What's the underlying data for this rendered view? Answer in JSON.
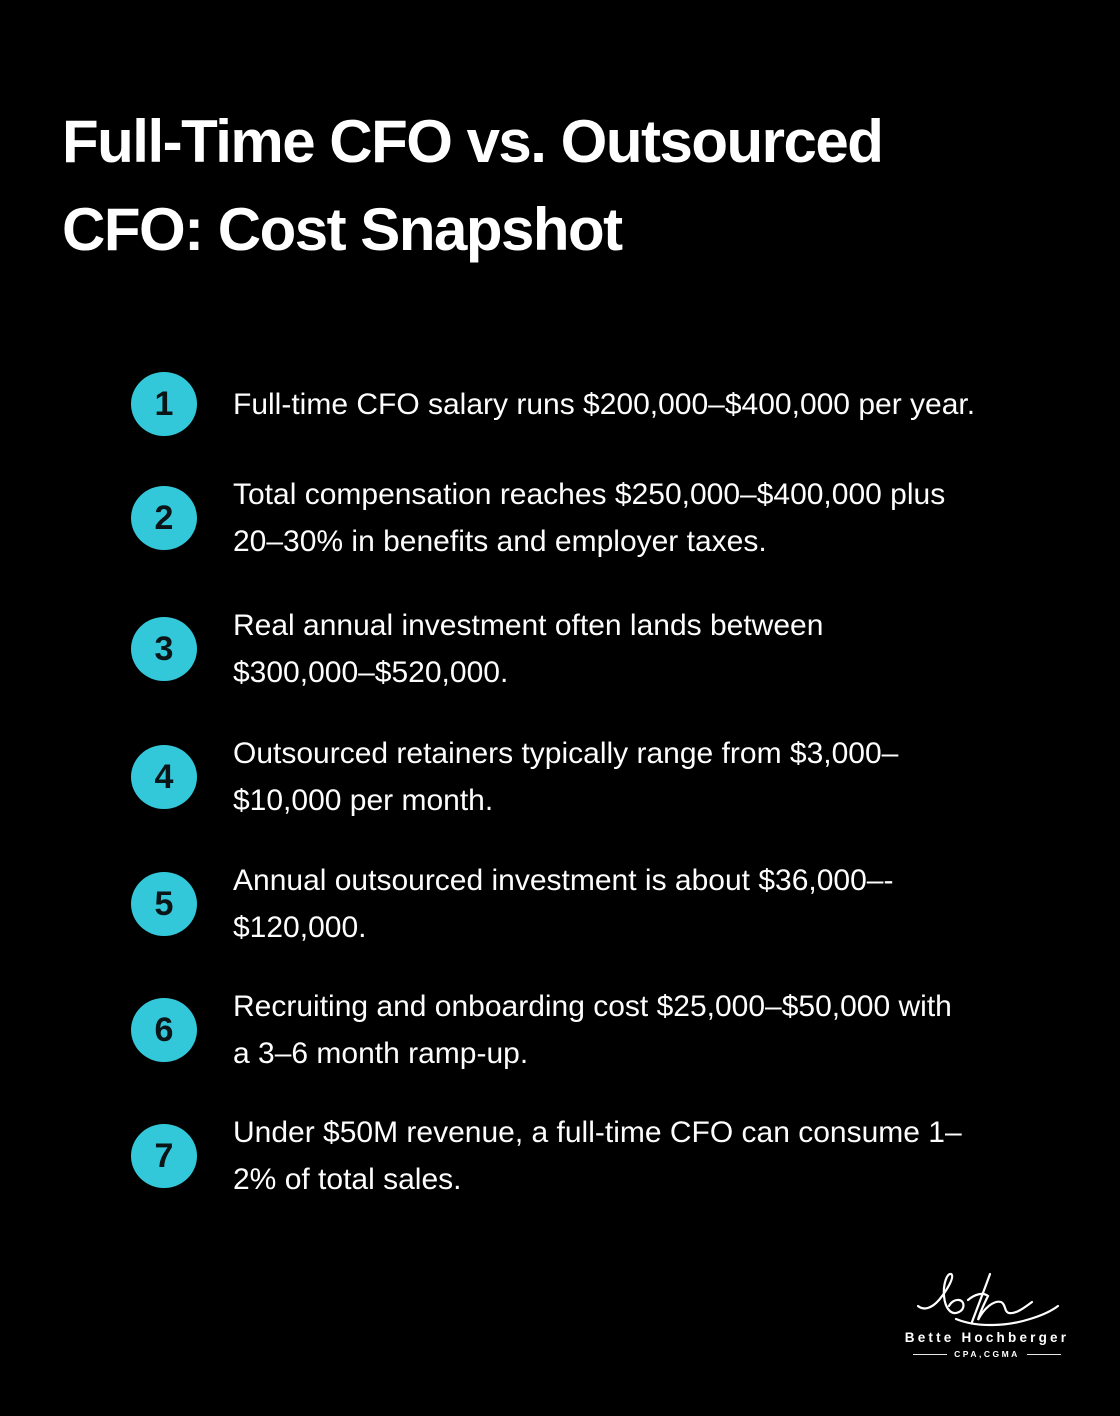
{
  "page": {
    "background": "#000000",
    "accent": "#32c8d9",
    "text_color": "#ffffff",
    "badge_number_color": "#0b1416"
  },
  "title": {
    "lines": [
      "Full-Time CFO vs. Outsourced",
      "CFO: Cost Snapshot"
    ]
  },
  "items": [
    {
      "number": "1",
      "lines": [
        "Full-time CFO salary runs $200,000–$400,000 per year."
      ]
    },
    {
      "number": "2",
      "lines": [
        "Total compensation reaches $250,000–$400,000 plus",
        "20–30% in benefits and employer taxes."
      ]
    },
    {
      "number": "3",
      "lines": [
        "Real annual investment often lands between",
        "$300,000–$520,000."
      ]
    },
    {
      "number": "4",
      "lines": [
        "Outsourced retainers typically range from $3,000–",
        "$10,000 per month."
      ]
    },
    {
      "number": "5",
      "lines": [
        "Annual outsourced investment is about $36,000–-",
        "$120,000."
      ]
    },
    {
      "number": "6",
      "lines": [
        "Recruiting and onboarding cost $25,000–$50,000 with",
        "a 3–6 month ramp-up."
      ]
    },
    {
      "number": "7",
      "lines": [
        "Under $50M revenue, a full-time CFO can consume 1–",
        "2% of total sales."
      ]
    }
  ],
  "logo": {
    "monogram_icon": "bh-signature-icon",
    "name": "Bette Hochberger",
    "credentials": "CPA,CGMA"
  }
}
